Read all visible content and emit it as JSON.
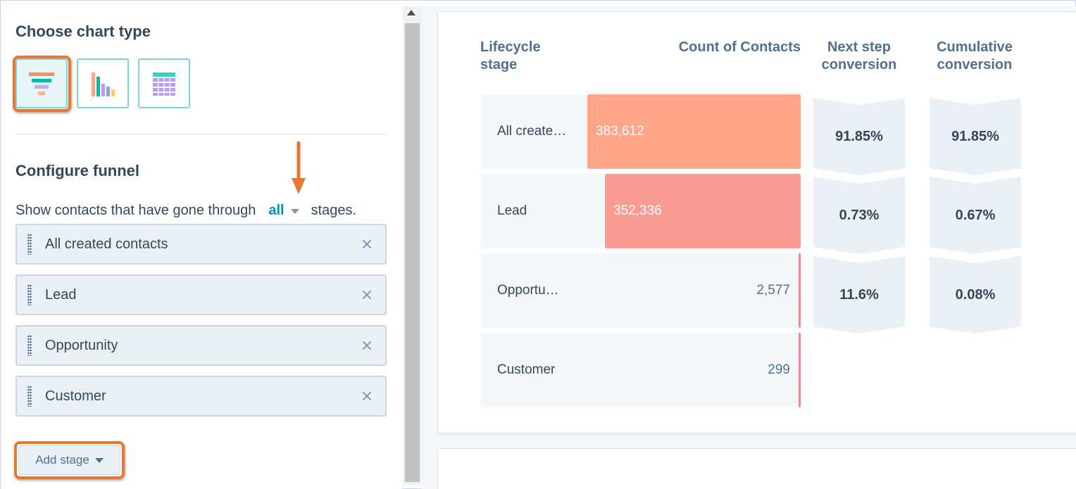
{
  "left": {
    "chart_type_title": "Choose chart type",
    "chart_types": [
      {
        "name": "funnel",
        "icon": "funnel-chart-icon",
        "selected": true
      },
      {
        "name": "bar",
        "icon": "bar-chart-icon",
        "selected": false
      },
      {
        "name": "table",
        "icon": "table-chart-icon",
        "selected": false
      }
    ],
    "configure_title": "Configure funnel",
    "show_prefix": "Show contacts that have gone through",
    "show_dropdown_value": "all",
    "show_suffix": "stages.",
    "stages": [
      {
        "label": "All created contacts"
      },
      {
        "label": "Lead"
      },
      {
        "label": "Opportunity"
      },
      {
        "label": "Customer"
      }
    ],
    "add_stage_label": "Add stage"
  },
  "funnel": {
    "headers": {
      "stage": "Lifecycle stage",
      "count": "Count of Contacts",
      "next": "Next step conversion",
      "cumulative": "Cumulative conversion"
    },
    "rows": [
      {
        "stage": "All create…",
        "count": "383,612",
        "value": 383612,
        "color": "#ffa58a"
      },
      {
        "stage": "Lead",
        "count": "352,336",
        "value": 352336,
        "color": "#fa9b94"
      },
      {
        "stage": "Opportu…",
        "count": "2,577",
        "value": 2577,
        "color": "#f2869a"
      },
      {
        "stage": "Customer",
        "count": "299",
        "value": 299,
        "color": "#f2869a"
      }
    ],
    "next_step": [
      "91.85%",
      "0.73%",
      "11.6%"
    ],
    "cumulative": [
      "91.85%",
      "0.67%",
      "0.08%"
    ]
  },
  "colors": {
    "accent_teal": "#0091ae",
    "callout_orange": "#e6782f"
  }
}
